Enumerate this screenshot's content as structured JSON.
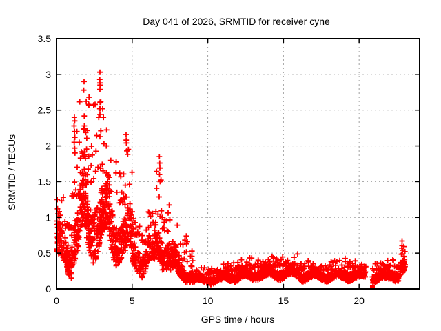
{
  "chart_data": {
    "type": "scatter",
    "title": "Day 041 of 2026, SRMTID for receiver cyne",
    "xlabel": "GPS time / hours",
    "ylabel": "SRMTID / TECUs",
    "xlim": [
      0,
      24
    ],
    "ylim": [
      0,
      3.5
    ],
    "xticks": [
      0,
      5,
      10,
      15,
      20
    ],
    "yticks": [
      0,
      0.5,
      1,
      1.5,
      2,
      2.5,
      3,
      3.5
    ],
    "grid": true,
    "legend": "none",
    "marker": "plus",
    "marker_color": "#ff0000",
    "grid_color": "#a0a0a0",
    "axis_color": "#000000",
    "background_color": "#ffffff",
    "x_data_range": [
      0,
      23.05
    ],
    "y_data_max": 3.03,
    "seed": 20260411,
    "density_bins": [
      [
        0.0,
        0.5,
        60,
        0.18,
        0.9,
        1.3
      ],
      [
        0.5,
        1.0,
        62,
        0.15,
        0.85,
        1.15
      ],
      [
        1.0,
        1.5,
        70,
        0.3,
        1.3,
        2.3
      ],
      [
        1.5,
        2.0,
        72,
        0.4,
        1.6,
        2.8
      ],
      [
        2.0,
        2.5,
        72,
        0.35,
        1.45,
        2.65
      ],
      [
        2.5,
        3.0,
        72,
        0.4,
        1.6,
        2.95
      ],
      [
        3.0,
        3.5,
        70,
        0.4,
        1.5,
        2.45
      ],
      [
        3.5,
        4.0,
        70,
        0.3,
        1.35,
        1.95
      ],
      [
        4.0,
        4.5,
        70,
        0.35,
        1.2,
        1.8
      ],
      [
        4.5,
        5.0,
        68,
        0.25,
        1.1,
        2.1
      ],
      [
        5.0,
        5.5,
        55,
        0.2,
        0.75,
        1.1
      ],
      [
        5.5,
        6.0,
        52,
        0.15,
        0.65,
        0.95
      ],
      [
        6.0,
        6.5,
        52,
        0.22,
        0.7,
        1.1
      ],
      [
        6.5,
        7.0,
        58,
        0.3,
        1.0,
        1.8
      ],
      [
        7.0,
        7.5,
        55,
        0.25,
        0.8,
        1.3
      ],
      [
        7.5,
        8.0,
        52,
        0.15,
        0.55,
        0.9
      ],
      [
        8.0,
        8.5,
        52,
        0.1,
        0.4,
        0.7
      ],
      [
        8.5,
        9.0,
        55,
        0.08,
        0.3,
        0.72
      ],
      [
        9.0,
        10.0,
        105,
        0.06,
        0.2,
        0.3
      ],
      [
        10.0,
        11.0,
        110,
        0.06,
        0.22,
        0.34
      ],
      [
        11.0,
        12.0,
        110,
        0.09,
        0.25,
        0.38
      ],
      [
        12.0,
        13.0,
        110,
        0.1,
        0.28,
        0.44
      ],
      [
        13.0,
        14.0,
        110,
        0.12,
        0.3,
        0.42
      ],
      [
        14.0,
        15.0,
        110,
        0.12,
        0.32,
        0.47
      ],
      [
        15.0,
        16.0,
        110,
        0.12,
        0.33,
        0.5
      ],
      [
        16.0,
        17.0,
        108,
        0.1,
        0.28,
        0.4
      ],
      [
        17.0,
        18.0,
        108,
        0.1,
        0.26,
        0.38
      ],
      [
        18.0,
        19.0,
        108,
        0.1,
        0.27,
        0.4
      ],
      [
        19.0,
        20.0,
        108,
        0.1,
        0.3,
        0.45
      ],
      [
        20.0,
        20.45,
        46,
        0.1,
        0.28,
        0.4
      ],
      [
        20.88,
        22.0,
        115,
        0.08,
        0.26,
        0.4
      ],
      [
        22.0,
        22.7,
        70,
        0.1,
        0.3,
        0.45
      ],
      [
        22.7,
        23.05,
        48,
        0.15,
        0.45,
        0.62
      ]
    ],
    "pinned_points": [
      [
        0.05,
        1.25
      ],
      [
        0.07,
        1.12
      ],
      [
        0.1,
        1.05
      ],
      [
        0.03,
        0.95
      ],
      [
        1.18,
        2.4
      ],
      [
        1.2,
        2.35
      ],
      [
        1.16,
        2.28
      ],
      [
        1.19,
        2.2
      ],
      [
        1.21,
        2.12
      ],
      [
        1.17,
        2.05
      ],
      [
        1.2,
        1.97
      ],
      [
        1.22,
        1.9
      ],
      [
        1.35,
        2.2
      ],
      [
        1.5,
        2.05
      ],
      [
        1.82,
        2.9
      ],
      [
        1.8,
        2.78
      ],
      [
        1.84,
        2.28
      ],
      [
        2.15,
        2.68
      ],
      [
        2.12,
        2.58
      ],
      [
        2.14,
        2.57
      ],
      [
        2.55,
        2.58
      ],
      [
        2.79,
        2.4
      ],
      [
        2.87,
        3.03
      ],
      [
        2.86,
        2.93
      ],
      [
        2.87,
        2.88
      ],
      [
        2.88,
        2.85
      ],
      [
        2.87,
        2.79
      ],
      [
        2.88,
        2.61
      ],
      [
        2.86,
        2.52
      ],
      [
        2.87,
        2.44
      ],
      [
        2.87,
        2.13
      ],
      [
        3.05,
        2.52
      ],
      [
        3.1,
        2.4
      ],
      [
        4.6,
        2.16
      ],
      [
        4.62,
        2.04
      ],
      [
        4.65,
        1.93
      ],
      [
        6.8,
        1.85
      ],
      [
        6.82,
        1.76
      ],
      [
        6.83,
        1.69
      ],
      [
        6.81,
        1.6
      ],
      [
        6.85,
        1.5
      ],
      [
        8.58,
        0.74
      ],
      [
        8.6,
        0.63
      ],
      [
        22.84,
        0.67
      ],
      [
        22.82,
        0.57
      ],
      [
        22.87,
        0.54
      ],
      [
        22.85,
        0.49
      ]
    ],
    "square_points": [
      [
        20.88,
        0.02
      ]
    ],
    "data_gaps": [
      [
        20.45,
        20.88
      ]
    ]
  }
}
